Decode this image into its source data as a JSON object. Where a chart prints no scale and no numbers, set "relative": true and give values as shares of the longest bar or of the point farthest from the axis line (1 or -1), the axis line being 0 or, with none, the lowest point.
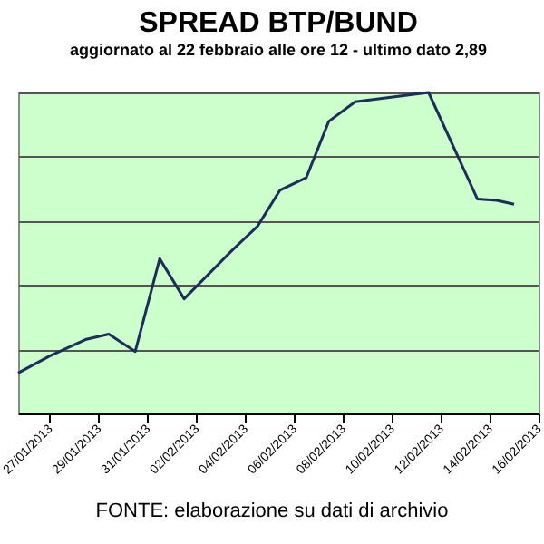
{
  "chart_data": {
    "type": "line",
    "title": "SPREAD  BTP/BUND",
    "subtitle": "aggiornato al 22 febbraio alle ore 12 - ultimo dato 2,89",
    "relative": true,
    "grid": "y",
    "marker": "none",
    "line_style": "solid",
    "x": [
      "2013-01-25T17:00",
      "2013-01-27T00:00",
      "2013-01-28T12:00",
      "2013-01-29T10:00",
      "2013-01-30T12:00",
      "2013-01-31T12:00",
      "2013-02-01T12:00",
      "2013-02-03T12:00",
      "2013-02-04T12:00",
      "2013-02-05T10:00",
      "2013-02-06T12:00",
      "2013-02-07T10:00",
      "2013-02-08T12:00",
      "2013-02-11T12:00",
      "2013-02-13T12:00",
      "2013-02-14T07:00",
      "2013-02-15T00:00"
    ],
    "series": [
      {
        "color": "#1c2f5a",
        "values": [
          0.126,
          0.179,
          0.231,
          0.247,
          0.193,
          0.482,
          0.357,
          0.511,
          0.583,
          0.695,
          0.735,
          0.91,
          0.971,
          1,
          0.668,
          0.664,
          0.652
        ]
      }
    ],
    "xlim": [
      "2013-01-25T17:00",
      "2013-02-16T00:00"
    ],
    "xticks": [
      {
        "value": "2013-01-27",
        "label": "27/01/2013"
      },
      {
        "value": "2013-01-29",
        "label": "29/01/2013"
      },
      {
        "value": "2013-01-31",
        "label": "31/01/2013"
      },
      {
        "value": "2013-02-02",
        "label": "02/02/2013"
      },
      {
        "value": "2013-02-04",
        "label": "04/02/2013"
      },
      {
        "value": "2013-02-06",
        "label": "06/02/2013"
      },
      {
        "value": "2013-02-08",
        "label": "08/02/2013"
      },
      {
        "value": "2013-02-10",
        "label": "10/02/2013"
      },
      {
        "value": "2013-02-12",
        "label": "12/02/2013"
      },
      {
        "value": "2013-02-14",
        "label": "14/02/2013"
      },
      {
        "value": "2013-02-16",
        "label": "16/02/2013"
      }
    ],
    "annotations": [
      "FONTE: elaborazione su dati di archivio"
    ]
  }
}
